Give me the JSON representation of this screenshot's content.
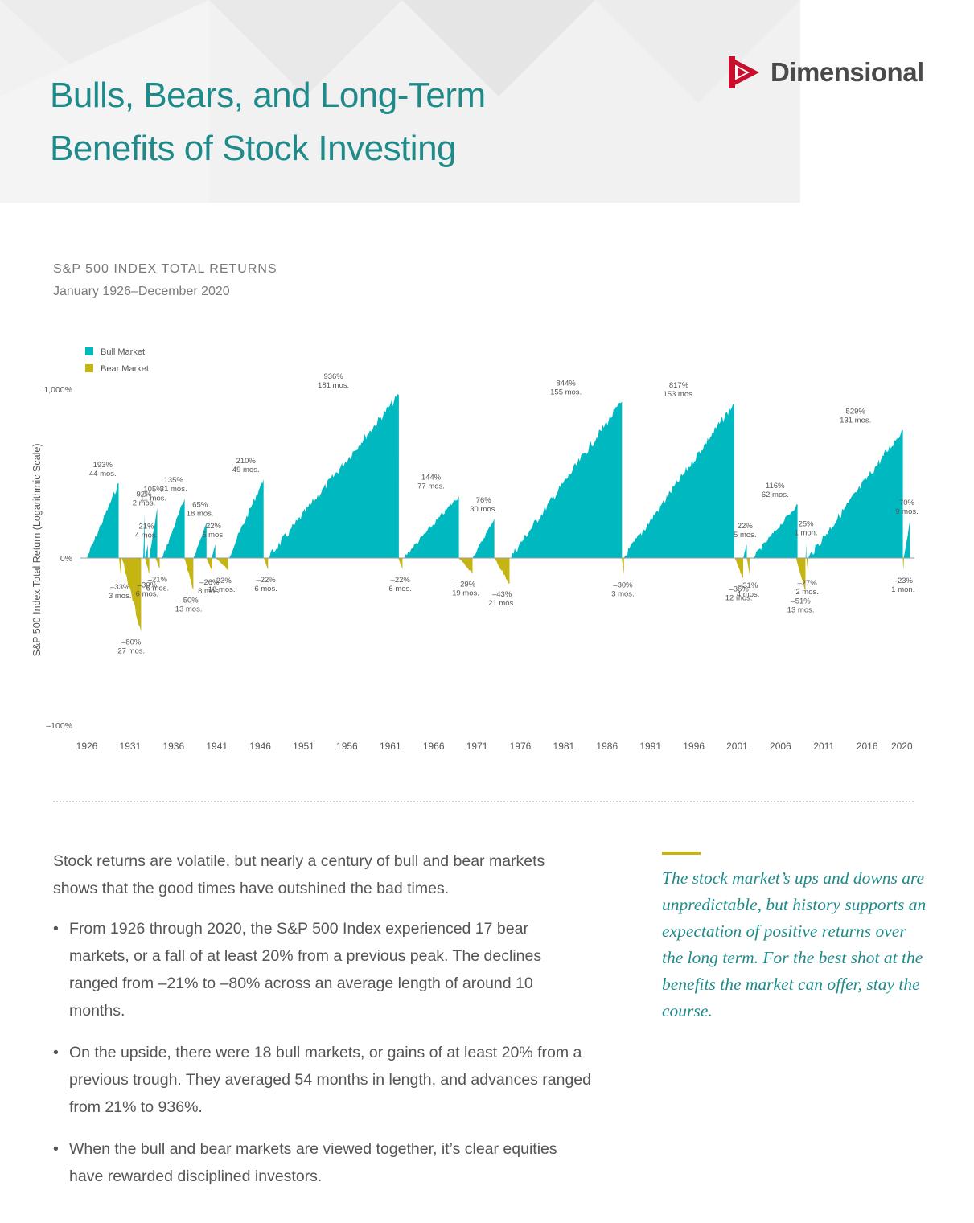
{
  "header": {
    "title_line1": "Bulls, Bears, and Long-Term",
    "title_line2": "Benefits of Stock Investing",
    "logo_text": "Dimensional",
    "logo_icon": "dimensional-logo-icon"
  },
  "chart_header": {
    "title": "S&P 500 INDEX TOTAL RETURNS",
    "subtitle": "January 1926–December 2020"
  },
  "colors": {
    "bull": "#00b8bf",
    "bear": "#c4b513",
    "title": "#1f8a8a",
    "text": "#555555"
  },
  "chart_data": {
    "type": "area",
    "ylabel": "S&P 500 Index Total Return (Logarithmic Scale)",
    "y_scale": "log",
    "y_ticks": [
      "1,000%",
      "0%",
      "–100%"
    ],
    "x_ticks": [
      "1926",
      "1931",
      "1936",
      "1941",
      "1946",
      "1951",
      "1956",
      "1961",
      "1966",
      "1971",
      "1976",
      "1981",
      "1986",
      "1991",
      "1996",
      "2001",
      "2006",
      "2011",
      "2016",
      "2020"
    ],
    "legend": [
      {
        "label": "Bull Market",
        "color": "#00b8bf"
      },
      {
        "label": "Bear Market",
        "color": "#c4b513"
      }
    ],
    "legend_position": "top-left",
    "bull_markets": [
      {
        "start": 1926.0,
        "return_pct": 193,
        "months": 44,
        "label1": "193%",
        "label2": "44 mos."
      },
      {
        "start": 1932.5,
        "return_pct": 92,
        "months": 2,
        "label1": "92%",
        "label2": "2 mos."
      },
      {
        "start": 1932.7,
        "return_pct": 21,
        "months": 4,
        "label1": "21%",
        "label2": "4 mos."
      },
      {
        "start": 1933.2,
        "return_pct": 105,
        "months": 11,
        "label1": "105%",
        "label2": "11 mos."
      },
      {
        "start": 1934.7,
        "return_pct": 135,
        "months": 31,
        "label1": "135%",
        "label2": "31 mos."
      },
      {
        "start": 1938.3,
        "return_pct": 65,
        "months": 18,
        "label1": "65%",
        "label2": "18 mos."
      },
      {
        "start": 1940.4,
        "return_pct": 22,
        "months": 5,
        "label1": "22%",
        "label2": "5 mos."
      },
      {
        "start": 1942.3,
        "return_pct": 210,
        "months": 49,
        "label1": "210%",
        "label2": "49 mos."
      },
      {
        "start": 1946.9,
        "return_pct": 936,
        "months": 181,
        "label1": "936%",
        "label2": "181 mos."
      },
      {
        "start": 1962.5,
        "return_pct": 144,
        "months": 77,
        "label1": "144%",
        "label2": "77 mos."
      },
      {
        "start": 1970.5,
        "return_pct": 76,
        "months": 30,
        "label1": "76%",
        "label2": "30 mos."
      },
      {
        "start": 1974.8,
        "return_pct": 844,
        "months": 155,
        "label1": "844%",
        "label2": "155 mos."
      },
      {
        "start": 1987.9,
        "return_pct": 817,
        "months": 153,
        "label1": "817%",
        "label2": "153 mos."
      },
      {
        "start": 2001.7,
        "return_pct": 22,
        "months": 5,
        "label1": "22%",
        "label2": "5 mos."
      },
      {
        "start": 2002.8,
        "return_pct": 116,
        "months": 62,
        "label1": "116%",
        "label2": "62 mos."
      },
      {
        "start": 2008.9,
        "return_pct": 25,
        "months": 1,
        "label1": "25%",
        "label2": "1 mon."
      },
      {
        "start": 2009.2,
        "return_pct": 529,
        "months": 131,
        "label1": "529%",
        "label2": "131 mos."
      },
      {
        "start": 2020.2,
        "return_pct": 70,
        "months": 9,
        "label1": "70%",
        "label2": "9 mos."
      }
    ],
    "bear_markets": [
      {
        "start": 1929.7,
        "return_pct": -33,
        "months": 3,
        "label1": "–33%",
        "label2": "3 mos."
      },
      {
        "start": 1930.0,
        "return_pct": -80,
        "months": 27,
        "label1": "–80%",
        "label2": "27 mos."
      },
      {
        "start": 1932.7,
        "return_pct": -30,
        "months": 6,
        "label1": "–30%",
        "label2": "6 mos."
      },
      {
        "start": 1933.9,
        "return_pct": -21,
        "months": 6,
        "label1": "–21%",
        "label2": "6 mos."
      },
      {
        "start": 1937.2,
        "return_pct": -50,
        "months": 13,
        "label1": "–50%",
        "label2": "13 mos."
      },
      {
        "start": 1939.8,
        "return_pct": -26,
        "months": 8,
        "label1": "–26%",
        "label2": "8 mos."
      },
      {
        "start": 1940.8,
        "return_pct": -23,
        "months": 18,
        "label1": "–23%",
        "label2": "18 mos."
      },
      {
        "start": 1946.4,
        "return_pct": -22,
        "months": 6,
        "label1": "–22%",
        "label2": "6 mos."
      },
      {
        "start": 1961.9,
        "return_pct": -22,
        "months": 6,
        "label1": "–22%",
        "label2": "6 mos."
      },
      {
        "start": 1968.9,
        "return_pct": -29,
        "months": 19,
        "label1": "–29%",
        "label2": "19 mos."
      },
      {
        "start": 1973.0,
        "return_pct": -43,
        "months": 21,
        "label1": "–43%",
        "label2": "21 mos."
      },
      {
        "start": 1987.7,
        "return_pct": -30,
        "months": 3,
        "label1": "–30%",
        "label2": "3 mos."
      },
      {
        "start": 2000.7,
        "return_pct": -36,
        "months": 12,
        "label1": "–36%",
        "label2": "12 mos."
      },
      {
        "start": 2002.1,
        "return_pct": -31,
        "months": 4,
        "label1": "–31%",
        "label2": "4 mos."
      },
      {
        "start": 2007.8,
        "return_pct": -51,
        "months": 13,
        "label1": "–51%",
        "label2": "13 mos."
      },
      {
        "start": 2009.0,
        "return_pct": -27,
        "months": 2,
        "label1": "–27%",
        "label2": "2 mos."
      },
      {
        "start": 2020.1,
        "return_pct": -23,
        "months": 1,
        "label1": "–23%",
        "label2": "1 mon."
      }
    ]
  },
  "body": {
    "intro": "Stock returns are volatile, but nearly a century of bull and bear markets shows that the good times have outshined the bad times.",
    "bullets": [
      "From 1926 through 2020, the S&P 500 Index experienced 17 bear markets, or a fall of at least 20% from a previous peak. The declines ranged from –21% to –80% across an average length of around 10 months.",
      "On the upside, there were 18 bull markets, or gains of at least 20% from a previous trough. They averaged 54 months in length, and advances ranged from 21% to 936%.",
      "When the bull and bear markets are viewed together, it’s clear equities have rewarded disciplined investors."
    ],
    "quote": "The stock market’s ups and downs are unpredictable, but history supports an expectation of positive returns over the long term. For the best shot at the benefits the market can offer, stay the course."
  }
}
